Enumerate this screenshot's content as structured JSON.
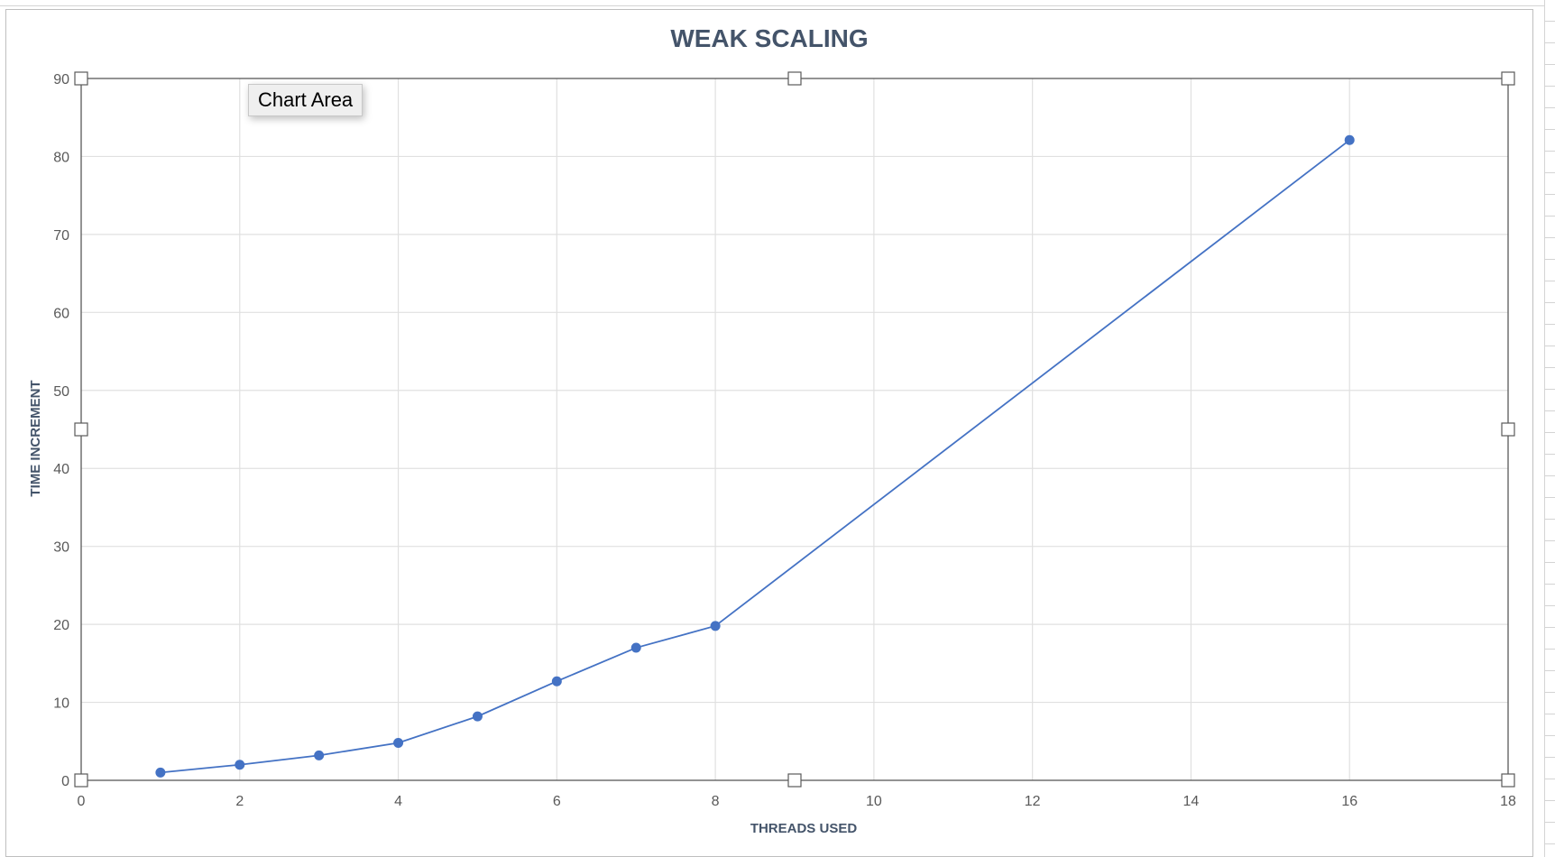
{
  "colors": {
    "series": "#4472c4",
    "gridline": "#e0e0e0",
    "plot_border": "#595959",
    "title": "#44546a"
  },
  "tooltip": {
    "text": "Chart Area"
  },
  "chart_data": {
    "type": "scatter",
    "title": "WEAK SCALING",
    "xlabel": "THREADS USED",
    "ylabel": "TIME INCREMENT",
    "xlim": [
      0,
      18
    ],
    "ylim": [
      0,
      90
    ],
    "x_ticks": [
      0,
      2,
      4,
      6,
      8,
      10,
      12,
      14,
      16,
      18
    ],
    "y_ticks": [
      0,
      10,
      20,
      30,
      40,
      50,
      60,
      70,
      80,
      90
    ],
    "grid": true,
    "legend": "none",
    "series": [
      {
        "x": [
          1,
          2,
          3,
          4,
          5,
          6,
          7,
          8,
          16
        ],
        "y": [
          1.0,
          2.0,
          3.2,
          4.8,
          8.2,
          12.7,
          17.0,
          19.8,
          82.1
        ],
        "line": true,
        "markers": true
      }
    ]
  }
}
